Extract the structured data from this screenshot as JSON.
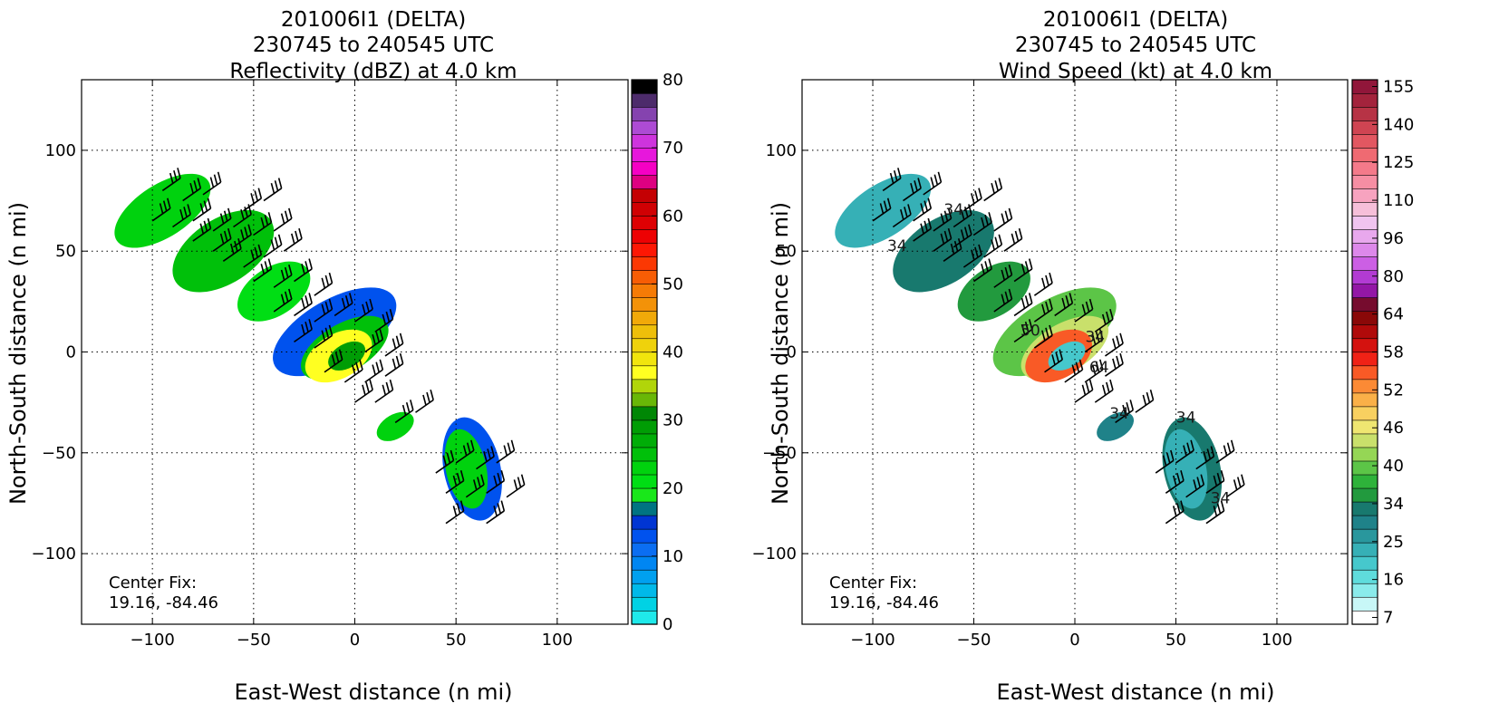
{
  "panels": [
    {
      "title_lines": [
        "201006I1 (DELTA)",
        "230745 to 240545 UTC",
        "Reflectivity (dBZ) at 4.0 km"
      ],
      "xlabel": "East-West distance (n mi)",
      "ylabel": "North-South distance (n mi)",
      "center_fix_label": "Center Fix:",
      "center_fix_value": "19.16, -84.46",
      "colorbar": {
        "ticks": [
          0,
          10,
          20,
          30,
          40,
          50,
          60,
          70,
          80
        ],
        "colors": [
          "#1fe9ea",
          "#00d2e4",
          "#00b9e9",
          "#00a0ef",
          "#0086f2",
          "#0b6ef2",
          "#0052ee",
          "#0035d3",
          "#007482",
          "#19e71a",
          "#00de14",
          "#00d20e",
          "#00c00a",
          "#00ad07",
          "#009d05",
          "#008705",
          "#69b707",
          "#b1d50a",
          "#ffff21",
          "#f1e50d",
          "#efd20c",
          "#eebf0a",
          "#f1a909",
          "#f39208",
          "#f57b06",
          "#f75d05",
          "#fb3803",
          "#fd1704",
          "#ed0103",
          "#de0003",
          "#d00003",
          "#c40003",
          "#dd0081",
          "#f500c4",
          "#e717dc",
          "#ce34dd",
          "#ad4bd4",
          "#8543af",
          "#4d2b6b",
          "#000000"
        ]
      }
    },
    {
      "title_lines": [
        "201006I1 (DELTA)",
        "230745 to 240545 UTC",
        "Wind Speed (kt) at 4.0 km"
      ],
      "xlabel": "East-West distance (n mi)",
      "ylabel": "North-South distance (n mi)",
      "center_fix_label": "Center Fix:",
      "center_fix_value": "19.16, -84.46",
      "colorbar": {
        "ticks": [
          "7",
          "16",
          "25",
          "34",
          "40",
          "46",
          "52",
          "58",
          "64",
          "80",
          "96",
          "110",
          "125",
          "140",
          "155"
        ],
        "colors": [
          "#ffffff",
          "#c8f7f7",
          "#8aebeb",
          "#5fdcdc",
          "#46c8cc",
          "#36b0b6",
          "#29979d",
          "#1f8289",
          "#18796e",
          "#229a3e",
          "#2eb23a",
          "#5cc547",
          "#95d655",
          "#c9e06b",
          "#efe671",
          "#f8d060",
          "#fab048",
          "#fb8a35",
          "#f95a26",
          "#f02216",
          "#d4120f",
          "#b00a0a",
          "#8a0808",
          "#760c2e",
          "#9317a6",
          "#b23bd3",
          "#cc5fe4",
          "#dd88ea",
          "#e8a8ed",
          "#f0c4ef",
          "#f6bfd9",
          "#f7a3bf",
          "#f68ea3",
          "#f47a8a",
          "#ef6a72",
          "#e25761",
          "#cf4452",
          "#b73345",
          "#a3233c",
          "#91163a"
        ]
      }
    }
  ],
  "chart_data": [
    {
      "type": "heatmap",
      "title": "201006I1 (DELTA) 230745 to 240545 UTC Reflectivity (dBZ) at 4.0 km",
      "xlabel": "East-West distance (n mi)",
      "ylabel": "North-South distance (n mi)",
      "xlim": [
        -135,
        135
      ],
      "ylim": [
        -135,
        135
      ],
      "xticks": [
        -100,
        -50,
        0,
        50,
        100
      ],
      "yticks": [
        -100,
        -50,
        0,
        50,
        100
      ],
      "grid": true,
      "colorbar_range": [
        0,
        80
      ],
      "colorbar_ticks": [
        0,
        10,
        20,
        30,
        40,
        50,
        60,
        70,
        80
      ],
      "rings": [
        {
          "x": -95,
          "y": 70,
          "rx": 27,
          "ry": 13,
          "rot": -33,
          "value": 22
        },
        {
          "x": -65,
          "y": 50,
          "rx": 28,
          "ry": 16,
          "rot": -33,
          "value": 24
        },
        {
          "x": -40,
          "y": 30,
          "rx": 20,
          "ry": 12,
          "rot": -33,
          "value": 20
        },
        {
          "x": -10,
          "y": 10,
          "rx": 34,
          "ry": 16,
          "rot": -30,
          "value": 12
        },
        {
          "x": -5,
          "y": 2,
          "rx": 24,
          "ry": 12,
          "rot": -30,
          "value": 25
        },
        {
          "x": -8,
          "y": -2,
          "rx": 18,
          "ry": 11,
          "rot": -30,
          "value": 37
        },
        {
          "x": -4,
          "y": -2,
          "rx": 10,
          "ry": 6,
          "rot": -30,
          "value": 28
        },
        {
          "x": 20,
          "y": -37,
          "rx": 10,
          "ry": 6,
          "rot": -30,
          "value": 22
        },
        {
          "x": 58,
          "y": -58,
          "rx": 14,
          "ry": 26,
          "rot": -12,
          "value": 12
        },
        {
          "x": 55,
          "y": -58,
          "rx": 10,
          "ry": 20,
          "rot": -12,
          "value": 22
        }
      ],
      "wind_barbs": [
        {
          "x": -95,
          "y": 80
        },
        {
          "x": -85,
          "y": 75
        },
        {
          "x": -75,
          "y": 78
        },
        {
          "x": -100,
          "y": 65
        },
        {
          "x": -90,
          "y": 62
        },
        {
          "x": -80,
          "y": 65
        },
        {
          "x": -70,
          "y": 60
        },
        {
          "x": -60,
          "y": 62
        },
        {
          "x": -55,
          "y": 70
        },
        {
          "x": -45,
          "y": 75
        },
        {
          "x": -80,
          "y": 55
        },
        {
          "x": -70,
          "y": 50
        },
        {
          "x": -60,
          "y": 52
        },
        {
          "x": -50,
          "y": 58
        },
        {
          "x": -40,
          "y": 60
        },
        {
          "x": -65,
          "y": 45
        },
        {
          "x": -55,
          "y": 42
        },
        {
          "x": -45,
          "y": 47
        },
        {
          "x": -35,
          "y": 50
        },
        {
          "x": -50,
          "y": 35
        },
        {
          "x": -40,
          "y": 32
        },
        {
          "x": -30,
          "y": 35
        },
        {
          "x": -20,
          "y": 28
        },
        {
          "x": -40,
          "y": 20
        },
        {
          "x": -30,
          "y": 18
        },
        {
          "x": -20,
          "y": 15
        },
        {
          "x": -10,
          "y": 18
        },
        {
          "x": 0,
          "y": 15
        },
        {
          "x": 10,
          "y": 10
        },
        {
          "x": -30,
          "y": 5
        },
        {
          "x": -20,
          "y": 2
        },
        {
          "x": 5,
          "y": 0
        },
        {
          "x": 15,
          "y": -2
        },
        {
          "x": -15,
          "y": -10
        },
        {
          "x": -5,
          "y": -15
        },
        {
          "x": 5,
          "y": -15
        },
        {
          "x": 15,
          "y": -12
        },
        {
          "x": 0,
          "y": -25
        },
        {
          "x": 10,
          "y": -25
        },
        {
          "x": 20,
          "y": -35
        },
        {
          "x": 30,
          "y": -30
        },
        {
          "x": 40,
          "y": -60
        },
        {
          "x": 50,
          "y": -55
        },
        {
          "x": 60,
          "y": -58
        },
        {
          "x": 70,
          "y": -55
        },
        {
          "x": 45,
          "y": -70
        },
        {
          "x": 55,
          "y": -72
        },
        {
          "x": 65,
          "y": -70
        },
        {
          "x": 75,
          "y": -72
        },
        {
          "x": 45,
          "y": -85
        },
        {
          "x": 65,
          "y": -85
        }
      ],
      "annotations": [
        "Center Fix:",
        "19.16, -84.46"
      ]
    },
    {
      "type": "heatmap",
      "title": "201006I1 (DELTA) 230745 to 240545 UTC Wind Speed (kt) at 4.0 km",
      "xlabel": "East-West distance (n mi)",
      "ylabel": "North-South distance (n mi)",
      "xlim": [
        -135,
        135
      ],
      "ylim": [
        -135,
        135
      ],
      "xticks": [
        -100,
        -50,
        0,
        50,
        100
      ],
      "yticks": [
        -100,
        -50,
        0,
        50,
        100
      ],
      "grid": true,
      "colorbar_range": [
        7,
        155
      ],
      "colorbar_ticks": [
        7,
        16,
        25,
        34,
        40,
        46,
        52,
        58,
        64,
        80,
        96,
        110,
        125,
        140,
        155
      ],
      "rings": [
        {
          "x": -95,
          "y": 70,
          "rx": 27,
          "ry": 13,
          "rot": -33,
          "value": 28
        },
        {
          "x": -65,
          "y": 50,
          "rx": 28,
          "ry": 16,
          "rot": -33,
          "value": 38
        },
        {
          "x": -40,
          "y": 30,
          "rx": 20,
          "ry": 12,
          "rot": -33,
          "value": 42
        },
        {
          "x": -10,
          "y": 10,
          "rx": 34,
          "ry": 16,
          "rot": -30,
          "value": 48
        },
        {
          "x": -5,
          "y": 2,
          "rx": 24,
          "ry": 12,
          "rot": -30,
          "value": 58
        },
        {
          "x": -8,
          "y": -2,
          "rx": 18,
          "ry": 11,
          "rot": -30,
          "value": 75
        },
        {
          "x": -4,
          "y": -2,
          "rx": 10,
          "ry": 6,
          "rot": -30,
          "value": 22
        },
        {
          "x": 20,
          "y": -37,
          "rx": 10,
          "ry": 6,
          "rot": -30,
          "value": 35
        },
        {
          "x": 58,
          "y": -58,
          "rx": 14,
          "ry": 26,
          "rot": -12,
          "value": 38
        },
        {
          "x": 55,
          "y": -58,
          "rx": 10,
          "ry": 20,
          "rot": -12,
          "value": 28
        }
      ],
      "wind_barbs": [
        {
          "x": -95,
          "y": 80
        },
        {
          "x": -85,
          "y": 75
        },
        {
          "x": -75,
          "y": 78
        },
        {
          "x": -100,
          "y": 65
        },
        {
          "x": -90,
          "y": 62
        },
        {
          "x": -80,
          "y": 65
        },
        {
          "x": -70,
          "y": 60
        },
        {
          "x": -60,
          "y": 62
        },
        {
          "x": -55,
          "y": 70
        },
        {
          "x": -45,
          "y": 75
        },
        {
          "x": -80,
          "y": 55
        },
        {
          "x": -70,
          "y": 50
        },
        {
          "x": -60,
          "y": 52
        },
        {
          "x": -50,
          "y": 58
        },
        {
          "x": -40,
          "y": 60
        },
        {
          "x": -65,
          "y": 45
        },
        {
          "x": -55,
          "y": 42
        },
        {
          "x": -45,
          "y": 47
        },
        {
          "x": -35,
          "y": 50
        },
        {
          "x": -50,
          "y": 35
        },
        {
          "x": -40,
          "y": 32
        },
        {
          "x": -30,
          "y": 35
        },
        {
          "x": -20,
          "y": 28
        },
        {
          "x": -40,
          "y": 20
        },
        {
          "x": -30,
          "y": 18
        },
        {
          "x": -20,
          "y": 15
        },
        {
          "x": -10,
          "y": 18
        },
        {
          "x": 0,
          "y": 15
        },
        {
          "x": 10,
          "y": 10
        },
        {
          "x": -30,
          "y": 5
        },
        {
          "x": -20,
          "y": 2
        },
        {
          "x": 5,
          "y": 0
        },
        {
          "x": 15,
          "y": -2
        },
        {
          "x": -15,
          "y": -10
        },
        {
          "x": -5,
          "y": -15
        },
        {
          "x": 5,
          "y": -15
        },
        {
          "x": 15,
          "y": -12
        },
        {
          "x": 0,
          "y": -25
        },
        {
          "x": 10,
          "y": -25
        },
        {
          "x": 20,
          "y": -35
        },
        {
          "x": 30,
          "y": -30
        },
        {
          "x": 40,
          "y": -60
        },
        {
          "x": 50,
          "y": -55
        },
        {
          "x": 60,
          "y": -58
        },
        {
          "x": 70,
          "y": -55
        },
        {
          "x": 45,
          "y": -70
        },
        {
          "x": 55,
          "y": -72
        },
        {
          "x": 65,
          "y": -70
        },
        {
          "x": 75,
          "y": -72
        },
        {
          "x": 45,
          "y": -85
        },
        {
          "x": 65,
          "y": -85
        }
      ],
      "contour_labels": [
        {
          "x": -88,
          "y": 50,
          "text": "34"
        },
        {
          "x": -60,
          "y": 68,
          "text": "34"
        },
        {
          "x": 22,
          "y": -33,
          "text": "34"
        },
        {
          "x": 55,
          "y": -35,
          "text": "34"
        },
        {
          "x": 72,
          "y": -75,
          "text": "34"
        },
        {
          "x": 10,
          "y": 5,
          "text": "34"
        },
        {
          "x": 12,
          "y": -10,
          "text": "64"
        },
        {
          "x": -22,
          "y": 8,
          "text": "50"
        }
      ],
      "annotations": [
        "Center Fix:",
        "19.16, -84.46"
      ]
    }
  ]
}
